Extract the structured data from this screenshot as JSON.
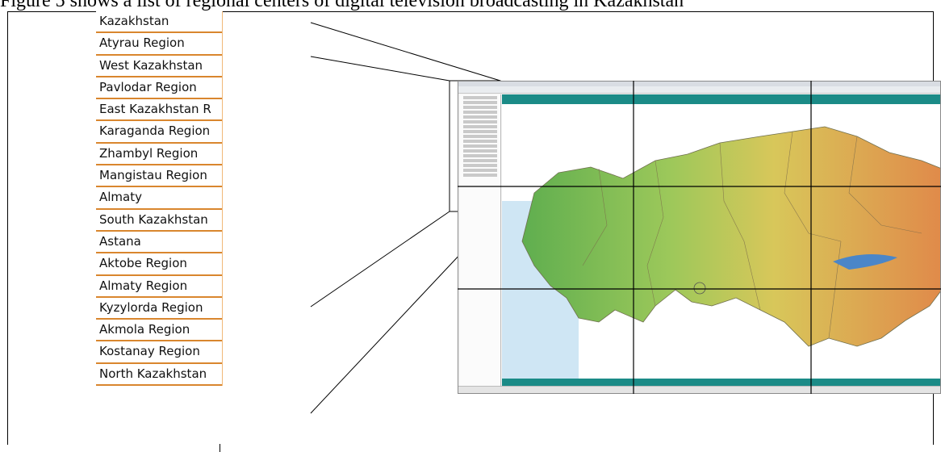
{
  "caption": "Figure 5 shows a list of regional centers of digital television broadcasting in Kazakhstan",
  "regions": [
    "Kazakhstan",
    "Atyrau Region",
    "West Kazakhstan",
    "Pavlodar Region",
    "East Kazakhstan R",
    "Karaganda Region",
    "Zhambyl Region",
    "Mangistau Region",
    "Almaty",
    "South Kazakhstan",
    "Astana",
    "Aktobe Region",
    "Almaty Region",
    "Kyzylorda Region",
    "Akmola Region",
    "Kostanay Region",
    "North Kazakhstan"
  ],
  "colors": {
    "list_rule": "#d9862e",
    "map_band": "#1b8b87",
    "map_green": "#5fae4f",
    "map_yellow": "#d8c75a",
    "map_orange": "#e08a4a",
    "water": "#cfe6f4"
  }
}
